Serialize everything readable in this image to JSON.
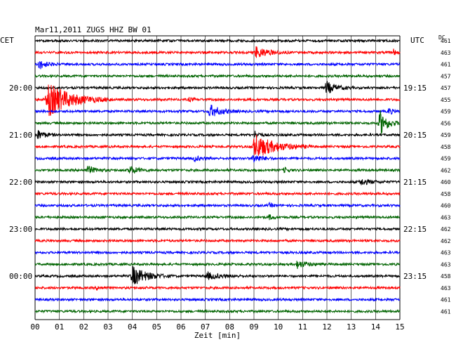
{
  "chart_data": {
    "type": "line",
    "title": "Mar11,2011   ZUGS HHZ BW 01",
    "left_label": "CET",
    "right_label": "UTC",
    "dc_label": "DC",
    "xlabel": "Zeit [min]",
    "x_ticks": [
      "00",
      "01",
      "02",
      "03",
      "04",
      "05",
      "06",
      "07",
      "08",
      "09",
      "10",
      "11",
      "12",
      "13",
      "14",
      "15"
    ],
    "xlim": [
      0,
      15
    ],
    "grid": true,
    "series_colors": [
      "#000000",
      "#ff0000",
      "#0000ff",
      "#006400"
    ],
    "left_hour_labels": [
      {
        "row": 4,
        "text": "20:00"
      },
      {
        "row": 8,
        "text": "21:00"
      },
      {
        "row": 12,
        "text": "22:00"
      },
      {
        "row": 16,
        "text": "23:00"
      },
      {
        "row": 20,
        "text": "00:00"
      }
    ],
    "right_hour_labels": [
      {
        "row": 4,
        "text": "19:15"
      },
      {
        "row": 8,
        "text": "20:15"
      },
      {
        "row": 12,
        "text": "21:15"
      },
      {
        "row": 16,
        "text": "22:15"
      },
      {
        "row": 20,
        "text": "23:15"
      }
    ],
    "dc_values": [
      "461",
      "463",
      "461",
      "457",
      "457",
      "455",
      "459",
      "456",
      "459",
      "458",
      "459",
      "462",
      "460",
      "458",
      "460",
      "463",
      "462",
      "462",
      "463",
      "463",
      "458",
      "463",
      "461",
      "461"
    ],
    "events": [
      {
        "row": 1,
        "start_min": 9.0,
        "duration_min": 1.5,
        "amplitude": 0.9
      },
      {
        "row": 1,
        "start_min": 14.7,
        "duration_min": 0.3,
        "amplitude": 0.6
      },
      {
        "row": 2,
        "start_min": 0.1,
        "duration_min": 0.9,
        "amplitude": 0.8
      },
      {
        "row": 4,
        "start_min": 11.9,
        "duration_min": 1.2,
        "amplitude": 1.0
      },
      {
        "row": 5,
        "start_min": 0.4,
        "duration_min": 2.8,
        "amplitude": 2.6
      },
      {
        "row": 5,
        "start_min": 6.3,
        "duration_min": 0.6,
        "amplitude": 0.3
      },
      {
        "row": 6,
        "start_min": 7.1,
        "duration_min": 1.4,
        "amplitude": 1.0
      },
      {
        "row": 6,
        "start_min": 14.5,
        "duration_min": 0.5,
        "amplitude": 0.6
      },
      {
        "row": 7,
        "start_min": 14.1,
        "duration_min": 0.9,
        "amplitude": 2.2
      },
      {
        "row": 8,
        "start_min": 0.0,
        "duration_min": 1.0,
        "amplitude": 0.8
      },
      {
        "row": 8,
        "start_min": 9.0,
        "duration_min": 0.6,
        "amplitude": 0.6
      },
      {
        "row": 9,
        "start_min": 8.9,
        "duration_min": 2.5,
        "amplitude": 1.9
      },
      {
        "row": 10,
        "start_min": 6.5,
        "duration_min": 0.8,
        "amplitude": 0.4
      },
      {
        "row": 10,
        "start_min": 8.9,
        "duration_min": 1.0,
        "amplitude": 0.7
      },
      {
        "row": 11,
        "start_min": 2.1,
        "duration_min": 1.0,
        "amplitude": 0.6
      },
      {
        "row": 11,
        "start_min": 3.8,
        "duration_min": 1.0,
        "amplitude": 0.7
      },
      {
        "row": 11,
        "start_min": 10.2,
        "duration_min": 0.5,
        "amplitude": 0.4
      },
      {
        "row": 12,
        "start_min": 13.3,
        "duration_min": 1.2,
        "amplitude": 0.5
      },
      {
        "row": 14,
        "start_min": 9.6,
        "duration_min": 0.5,
        "amplitude": 0.3
      },
      {
        "row": 15,
        "start_min": 9.6,
        "duration_min": 0.5,
        "amplitude": 0.4
      },
      {
        "row": 19,
        "start_min": 10.7,
        "duration_min": 1.2,
        "amplitude": 0.6
      },
      {
        "row": 20,
        "start_min": 3.9,
        "duration_min": 1.8,
        "amplitude": 1.5
      },
      {
        "row": 20,
        "start_min": 7.0,
        "duration_min": 1.6,
        "amplitude": 0.5
      },
      {
        "row": 21,
        "start_min": 2.5,
        "duration_min": 0.5,
        "amplitude": 0.3
      }
    ]
  }
}
